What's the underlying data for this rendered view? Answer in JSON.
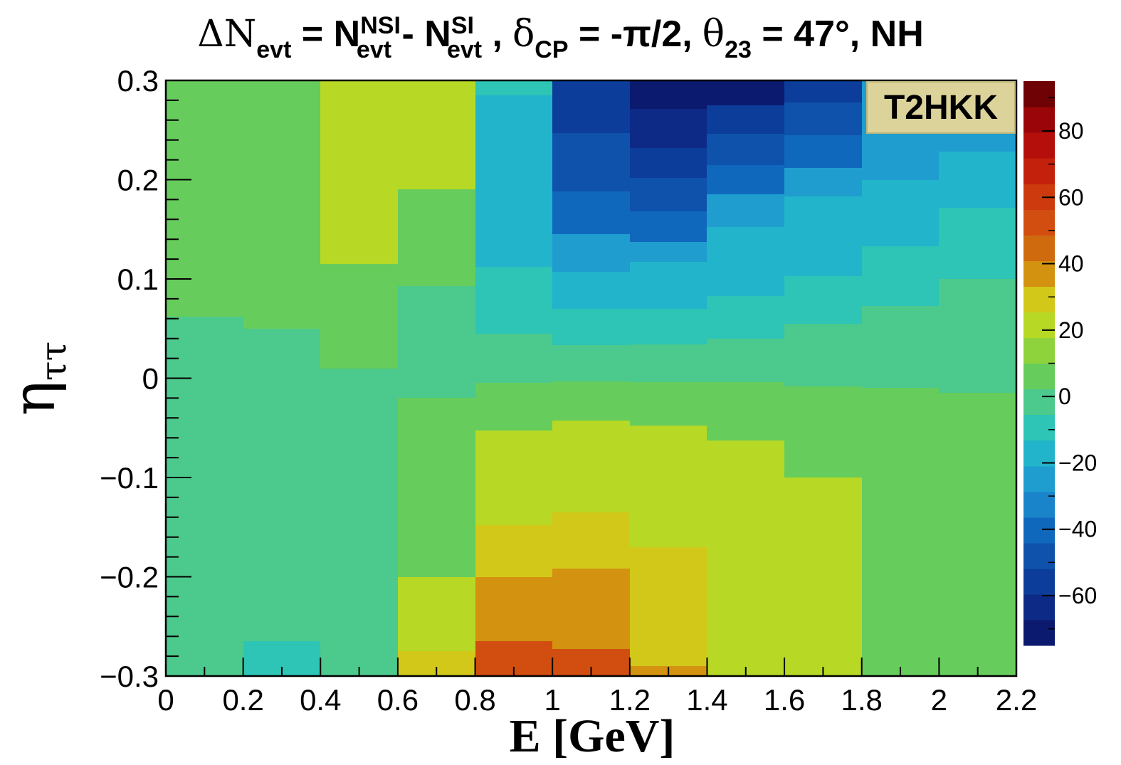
{
  "title": {
    "delta": "ΔN",
    "evt1": "evt",
    "eq1": " = N",
    "nsi": "NSI",
    "evt2": "evt",
    "minus": " - N",
    "si": "SI",
    "evt3": "evt",
    "comma1": " ,",
    "delta_cp": "δ",
    "cp": "CP",
    "cp_value": " = -π/2,",
    "theta": "θ",
    "sub23": "23",
    "rest": " = 47°, NH"
  },
  "badge": "T2HKK",
  "chart_data": {
    "type": "heatmap",
    "title": "ΔN_evt = N_evt^NSI - N_evt^SI , δ_CP = -π/2, θ_23 = 47°, NH",
    "xlabel": "E [GeV]",
    "ylabel": "η_ττ",
    "xlim": [
      0,
      2.2
    ],
    "ylim": [
      -0.3,
      0.3
    ],
    "zlim": [
      -75,
      95
    ],
    "x_ticks": [
      "0",
      "0.2",
      "0.4",
      "0.6",
      "0.8",
      "1",
      "1.2",
      "1.4",
      "1.6",
      "1.8",
      "2",
      "2.2"
    ],
    "y_ticks": [
      "−0.3",
      "−0.2",
      "−0.1",
      "0",
      "0.1",
      "0.2",
      "0.3"
    ],
    "z_ticks": [
      "−60",
      "−40",
      "−20",
      "0",
      "20",
      "40",
      "60",
      "80"
    ],
    "z_tick_values": [
      -60,
      -40,
      -20,
      0,
      20,
      40,
      60,
      80
    ],
    "palette": [
      "#0b1a6e",
      "#0d2a87",
      "#0c3d9a",
      "#0e52ab",
      "#1068bd",
      "#1a84cb",
      "#1f9dcf",
      "#22b4cb",
      "#2ec4b6",
      "#4cc98c",
      "#66cc5c",
      "#8ed33c",
      "#b7d925",
      "#d2c81a",
      "#d3920f",
      "#d06a0f",
      "#d14e10",
      "#cc3a0e",
      "#c3210c",
      "#b50f0b",
      "#990508",
      "#6e0205"
    ],
    "columns": [
      {
        "x": [
          0.0,
          0.2
        ],
        "cells": [
          {
            "y": [
              -0.3,
              0.062
            ],
            "z": 0
          },
          {
            "y": [
              0.062,
              0.3
            ],
            "z": 8
          }
        ]
      },
      {
        "x": [
          0.2,
          0.4
        ],
        "cells": [
          {
            "y": [
              -0.3,
              -0.265
            ],
            "z": -10
          },
          {
            "y": [
              -0.265,
              0.05
            ],
            "z": 0
          },
          {
            "y": [
              0.05,
              0.3
            ],
            "z": 8
          }
        ]
      },
      {
        "x": [
          0.4,
          0.6
        ],
        "cells": [
          {
            "y": [
              -0.3,
              0.01
            ],
            "z": 0
          },
          {
            "y": [
              0.01,
              0.115
            ],
            "z": 8
          },
          {
            "y": [
              0.115,
              0.3
            ],
            "z": 18
          }
        ]
      },
      {
        "x": [
          0.6,
          0.8
        ],
        "cells": [
          {
            "y": [
              -0.3,
              -0.275
            ],
            "z": 32
          },
          {
            "y": [
              -0.275,
              -0.2
            ],
            "z": 25
          },
          {
            "y": [
              -0.2,
              -0.125
            ],
            "z": 8
          },
          {
            "y": [
              -0.125,
              -0.02
            ],
            "z": 8
          },
          {
            "y": [
              -0.02,
              0.093
            ],
            "z": 0
          },
          {
            "y": [
              0.093,
              0.19
            ],
            "z": 8
          },
          {
            "y": [
              0.19,
              0.258
            ],
            "z": 18
          },
          {
            "y": [
              0.258,
              0.3
            ],
            "z": 25
          }
        ]
      },
      {
        "x": [
          0.8,
          1.0
        ],
        "cells": [
          {
            "y": [
              -0.3,
              -0.265
            ],
            "z": 50
          },
          {
            "y": [
              -0.265,
              -0.2
            ],
            "z": 40
          },
          {
            "y": [
              -0.2,
              -0.148
            ],
            "z": 32
          },
          {
            "y": [
              -0.148,
              -0.1
            ],
            "z": 25
          },
          {
            "y": [
              -0.1,
              -0.053
            ],
            "z": 18
          },
          {
            "y": [
              -0.053,
              -0.005
            ],
            "z": 8
          },
          {
            "y": [
              -0.005,
              0.045
            ],
            "z": 0
          },
          {
            "y": [
              0.045,
              0.112
            ],
            "z": -10
          },
          {
            "y": [
              0.112,
              0.285
            ],
            "z": -18
          },
          {
            "y": [
              0.285,
              0.3
            ],
            "z": -10
          }
        ]
      },
      {
        "x": [
          1.0,
          1.2
        ],
        "cells": [
          {
            "y": [
              -0.3,
              -0.273
            ],
            "z": 50
          },
          {
            "y": [
              -0.273,
              -0.192
            ],
            "z": 40
          },
          {
            "y": [
              -0.192,
              -0.135
            ],
            "z": 32
          },
          {
            "y": [
              -0.135,
              -0.087
            ],
            "z": 25
          },
          {
            "y": [
              -0.087,
              -0.043
            ],
            "z": 18
          },
          {
            "y": [
              -0.043,
              -0.003
            ],
            "z": 8
          },
          {
            "y": [
              -0.003,
              0.033
            ],
            "z": 0
          },
          {
            "y": [
              0.033,
              0.07
            ],
            "z": -10
          },
          {
            "y": [
              0.07,
              0.107
            ],
            "z": -18
          },
          {
            "y": [
              0.107,
              0.145
            ],
            "z": -28
          },
          {
            "y": [
              0.145,
              0.188
            ],
            "z": -38
          },
          {
            "y": [
              0.188,
              0.247
            ],
            "z": -48
          },
          {
            "y": [
              0.247,
              0.3
            ],
            "z": -58
          }
        ]
      },
      {
        "x": [
          1.2,
          1.4
        ],
        "cells": [
          {
            "y": [
              -0.3,
              -0.29
            ],
            "z": 40
          },
          {
            "y": [
              -0.29,
              -0.17
            ],
            "z": 32
          },
          {
            "y": [
              -0.17,
              -0.1
            ],
            "z": 25
          },
          {
            "y": [
              -0.1,
              -0.048
            ],
            "z": 18
          },
          {
            "y": [
              -0.048,
              -0.004
            ],
            "z": 8
          },
          {
            "y": [
              -0.004,
              0.034
            ],
            "z": 0
          },
          {
            "y": [
              0.034,
              0.07
            ],
            "z": -10
          },
          {
            "y": [
              0.07,
              0.117
            ],
            "z": -18
          },
          {
            "y": [
              0.117,
              0.137
            ],
            "z": -28
          },
          {
            "y": [
              0.137,
              0.168
            ],
            "z": -38
          },
          {
            "y": [
              0.168,
              0.202
            ],
            "z": -48
          },
          {
            "y": [
              0.202,
              0.232
            ],
            "z": -58
          },
          {
            "y": [
              0.232,
              0.271
            ],
            "z": -66
          },
          {
            "y": [
              0.271,
              0.3
            ],
            "z": -74
          }
        ]
      },
      {
        "x": [
          1.4,
          1.6
        ],
        "cells": [
          {
            "y": [
              -0.3,
              -0.148
            ],
            "z": 25
          },
          {
            "y": [
              -0.148,
              -0.063
            ],
            "z": 18
          },
          {
            "y": [
              -0.063,
              -0.004
            ],
            "z": 8
          },
          {
            "y": [
              -0.004,
              0.04
            ],
            "z": 0
          },
          {
            "y": [
              0.04,
              0.083
            ],
            "z": -10
          },
          {
            "y": [
              0.083,
              0.152
            ],
            "z": -18
          },
          {
            "y": [
              0.152,
              0.185
            ],
            "z": -28
          },
          {
            "y": [
              0.185,
              0.215
            ],
            "z": -38
          },
          {
            "y": [
              0.215,
              0.246
            ],
            "z": -48
          },
          {
            "y": [
              0.246,
              0.275
            ],
            "z": -58
          },
          {
            "y": [
              0.275,
              0.3
            ],
            "z": -74
          }
        ]
      },
      {
        "x": [
          1.6,
          1.8
        ],
        "cells": [
          {
            "y": [
              -0.3,
              -0.1
            ],
            "z": 18
          },
          {
            "y": [
              -0.1,
              -0.008
            ],
            "z": 8
          },
          {
            "y": [
              -0.008,
              0.055
            ],
            "z": 0
          },
          {
            "y": [
              0.055,
              0.103
            ],
            "z": -10
          },
          {
            "y": [
              0.103,
              0.183
            ],
            "z": -18
          },
          {
            "y": [
              0.183,
              0.212
            ],
            "z": -28
          },
          {
            "y": [
              0.212,
              0.245
            ],
            "z": -38
          },
          {
            "y": [
              0.245,
              0.278
            ],
            "z": -48
          },
          {
            "y": [
              0.278,
              0.3
            ],
            "z": -58
          }
        ]
      },
      {
        "x": [
          1.8,
          2.0
        ],
        "cells": [
          {
            "y": [
              -0.3,
              -0.01
            ],
            "z": 8
          },
          {
            "y": [
              -0.01,
              0.073
            ],
            "z": 0
          },
          {
            "y": [
              0.073,
              0.133
            ],
            "z": -10
          },
          {
            "y": [
              0.133,
              0.2
            ],
            "z": -18
          },
          {
            "y": [
              0.2,
              0.228
            ],
            "z": -28
          },
          {
            "y": [
              0.228,
              0.3
            ],
            "z": -28
          }
        ]
      },
      {
        "x": [
          2.0,
          2.2
        ],
        "cells": [
          {
            "y": [
              -0.3,
              -0.015
            ],
            "z": 8
          },
          {
            "y": [
              -0.015,
              0.1
            ],
            "z": 0
          },
          {
            "y": [
              0.1,
              0.172
            ],
            "z": -10
          },
          {
            "y": [
              0.172,
              0.228
            ],
            "z": -18
          },
          {
            "y": [
              0.228,
              0.3
            ],
            "z": -28
          }
        ]
      }
    ]
  }
}
